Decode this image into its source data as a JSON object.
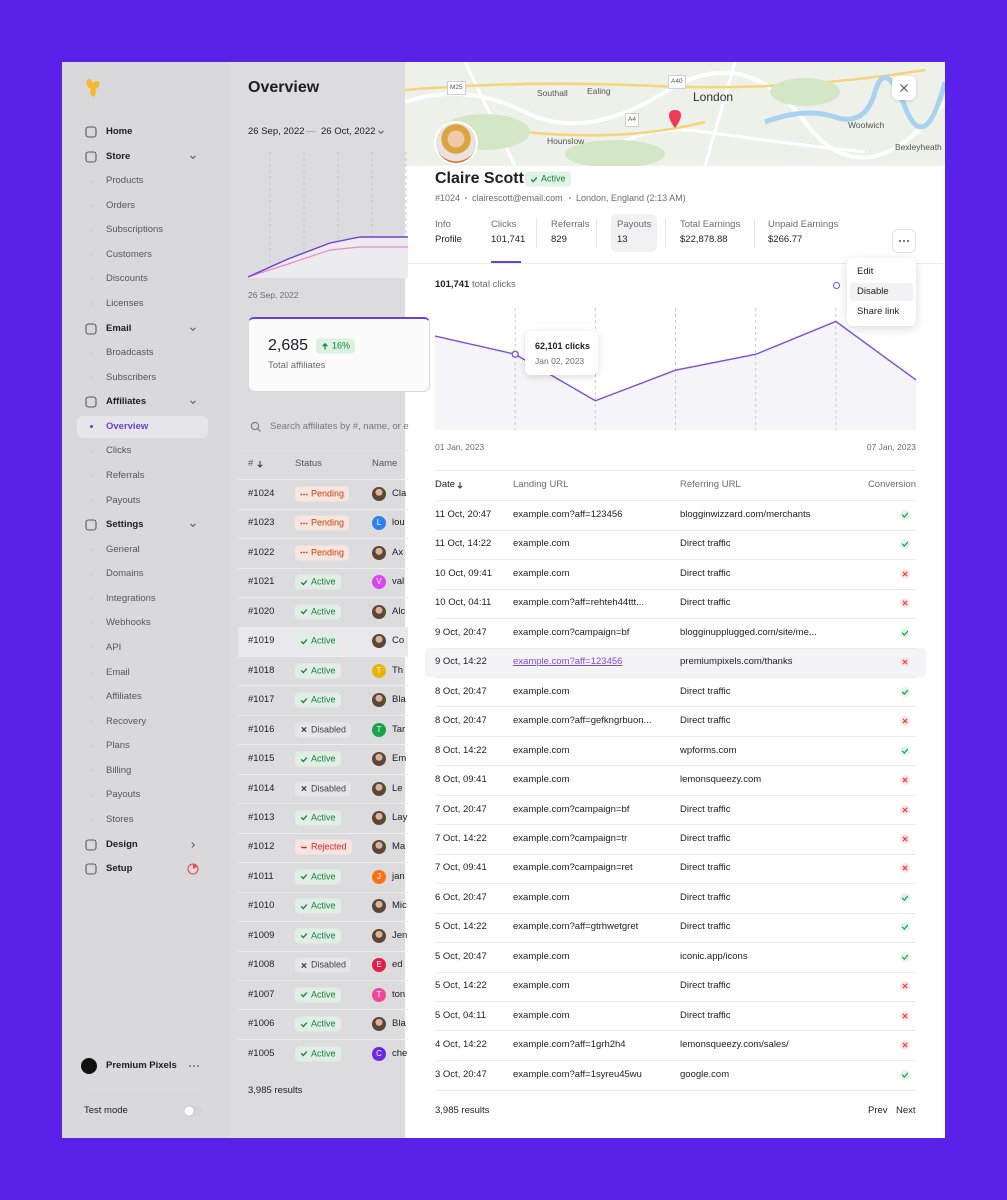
{
  "sidebar": {
    "nav": [
      {
        "label": "Home"
      },
      {
        "label": "Store",
        "children": [
          "Products",
          "Orders",
          "Subscriptions",
          "Customers",
          "Discounts",
          "Licenses"
        ]
      },
      {
        "label": "Email",
        "children": [
          "Broadcasts",
          "Subscribers"
        ]
      },
      {
        "label": "Affiliates",
        "children": [
          "Overview",
          "Clicks",
          "Referrals",
          "Payouts"
        ]
      },
      {
        "label": "Settings",
        "children": [
          "General",
          "Domains",
          "Integrations",
          "Webhooks",
          "API",
          "Email",
          "Affiliates",
          "Recovery",
          "Plans",
          "Billing",
          "Payouts",
          "Stores"
        ]
      },
      {
        "label": "Design"
      },
      {
        "label": "Setup"
      }
    ],
    "account": "Premium Pixels",
    "test_mode": "Test mode"
  },
  "overview": {
    "title": "Overview",
    "date_start": "26 Sep, 2022",
    "date_separator": "—",
    "date_end": "26 Oct, 2022",
    "chart_start": "26 Sep, 2022",
    "stat": {
      "value": "2,685",
      "change": "16%",
      "label": "Total affiliates"
    },
    "search_placeholder": "Search affiliates by #, name, or e",
    "columns": [
      "#",
      "Status",
      "Name"
    ],
    "rows": [
      {
        "id": "#1024",
        "status": "Pending",
        "status_color": "#c2410c",
        "icon": "dots",
        "name": "Cla"
      },
      {
        "id": "#1023",
        "status": "Pending",
        "status_color": "#c2410c",
        "icon": "dots",
        "name": "lou",
        "avatar": {
          "initial": "L",
          "color": "#2f80ed"
        }
      },
      {
        "id": "#1022",
        "status": "Pending",
        "status_color": "#c2410c",
        "icon": "dots",
        "name": "Ax"
      },
      {
        "id": "#1021",
        "status": "Active",
        "status_color": "#15803d",
        "icon": "check",
        "name": "val",
        "avatar": {
          "initial": "V",
          "color": "#d946ef"
        }
      },
      {
        "id": "#1020",
        "status": "Active",
        "status_color": "#15803d",
        "icon": "check",
        "name": "Alc"
      },
      {
        "id": "#1019",
        "status": "Active",
        "status_color": "#15803d",
        "icon": "check",
        "name": "Co"
      },
      {
        "id": "#1018",
        "status": "Active",
        "status_color": "#15803d",
        "icon": "check",
        "name": "Th",
        "avatar": {
          "initial": "T",
          "color": "#eab308"
        }
      },
      {
        "id": "#1017",
        "status": "Active",
        "status_color": "#15803d",
        "icon": "check",
        "name": "Bla"
      },
      {
        "id": "#1016",
        "status": "Disabled",
        "status_color": "#3f3f46",
        "icon": "cross",
        "name": "Tar",
        "avatar": {
          "initial": "T",
          "color": "#16a34a"
        }
      },
      {
        "id": "#1015",
        "status": "Active",
        "status_color": "#15803d",
        "icon": "check",
        "name": "Em"
      },
      {
        "id": "#1014",
        "status": "Disabled",
        "status_color": "#3f3f46",
        "icon": "cross",
        "name": "Le"
      },
      {
        "id": "#1013",
        "status": "Active",
        "status_color": "#15803d",
        "icon": "check",
        "name": "Lay"
      },
      {
        "id": "#1012",
        "status": "Rejected",
        "status_color": "#dc2626",
        "icon": "minus",
        "name": "Ma"
      },
      {
        "id": "#1011",
        "status": "Active",
        "status_color": "#15803d",
        "icon": "check",
        "name": "jan",
        "avatar": {
          "initial": "J",
          "color": "#f97316"
        }
      },
      {
        "id": "#1010",
        "status": "Active",
        "status_color": "#15803d",
        "icon": "check",
        "name": "Mic"
      },
      {
        "id": "#1009",
        "status": "Active",
        "status_color": "#15803d",
        "icon": "check",
        "name": "Jen"
      },
      {
        "id": "#1008",
        "status": "Disabled",
        "status_color": "#3f3f46",
        "icon": "cross",
        "name": "ed",
        "avatar": {
          "initial": "E",
          "color": "#e11d48"
        }
      },
      {
        "id": "#1007",
        "status": "Active",
        "status_color": "#15803d",
        "icon": "check",
        "name": "ton",
        "avatar": {
          "initial": "T",
          "color": "#ec4899"
        }
      },
      {
        "id": "#1006",
        "status": "Active",
        "status_color": "#15803d",
        "icon": "check",
        "name": "Bla"
      },
      {
        "id": "#1005",
        "status": "Active",
        "status_color": "#15803d",
        "icon": "check",
        "name": "che",
        "avatar": {
          "initial": "C",
          "color": "#6d28d9"
        }
      }
    ],
    "results": "3,985 results"
  },
  "map": {
    "labels": [
      "M25",
      "Southall",
      "Ealing",
      "A40",
      "London",
      "A4",
      "Hounslow",
      "Woolwich",
      "Bexleyheath"
    ]
  },
  "profile": {
    "name": "Claire Scott",
    "status": "Active",
    "id": "#1024",
    "email": "clairescott@email.com",
    "location": "London, England (2:13 AM)"
  },
  "tabs": [
    {
      "label": "Info",
      "value": "Profile"
    },
    {
      "label": "Clicks",
      "value": "101,741"
    },
    {
      "label": "Referrals",
      "value": "829"
    },
    {
      "label": "Payouts",
      "value": "13"
    },
    {
      "label": "Total Earnings",
      "value": "$22,878.88"
    },
    {
      "label": "Unpaid Earnings",
      "value": "$266.77"
    }
  ],
  "menu": [
    "Edit",
    "Disable",
    "Share link"
  ],
  "chart_data": {
    "type": "line",
    "total": "101,741",
    "total_label": "total clicks",
    "categories": [
      "01 Jan, 2023",
      null,
      null,
      null,
      null,
      null,
      "07 Jan, 2023"
    ],
    "values": [
      77000,
      62101,
      24000,
      49000,
      62000,
      89000,
      41000
    ],
    "color": "#7c4ddb",
    "ylim": [
      0,
      100000
    ],
    "grid": true,
    "tooltip": {
      "title": "62,101 clicks",
      "date": "Jan 02, 2023"
    }
  },
  "clicks_table": {
    "columns": [
      "Date",
      "Landing URL",
      "Referring URL",
      "Conversion"
    ],
    "rows": [
      {
        "date": "11 Oct, 20:47",
        "landing": "example.com?aff=123456",
        "referring": "blogginwizzard.com/merchants",
        "converted": true
      },
      {
        "date": "11 Oct, 14:22",
        "landing": "example.com",
        "referring": "Direct traffic",
        "converted": true
      },
      {
        "date": "10 Oct, 09:41",
        "landing": "example.com",
        "referring": "Direct traffic",
        "converted": false
      },
      {
        "date": "10 Oct, 04:11",
        "landing": "example.com?aff=rehteh44ttt...",
        "referring": "Direct traffic",
        "converted": false
      },
      {
        "date": "9 Oct, 20:47",
        "landing": "example.com?campaign=bf",
        "referring": "blogginupplugged.com/site/me...",
        "converted": true
      },
      {
        "date": "9 Oct, 14:22",
        "landing": "example.com?aff=123456",
        "referring": "premiumpixels.com/thanks",
        "converted": false
      },
      {
        "date": "8 Oct, 20:47",
        "landing": "example.com",
        "referring": "Direct traffic",
        "converted": true
      },
      {
        "date": "8 Oct, 20:47",
        "landing": "example.com?aff=gefkngrbuon...",
        "referring": "Direct traffic",
        "converted": false
      },
      {
        "date": "8 Oct, 14:22",
        "landing": "example.com",
        "referring": "wpforms.com",
        "converted": true
      },
      {
        "date": "8 Oct, 09:41",
        "landing": "example.com",
        "referring": "lemonsqueezy.com",
        "converted": false
      },
      {
        "date": "7 Oct, 20:47",
        "landing": "example.com?campaign=bf",
        "referring": "Direct traffic",
        "converted": false
      },
      {
        "date": "7 Oct, 14:22",
        "landing": "example.com?campaign=tr",
        "referring": "Direct traffic",
        "converted": false
      },
      {
        "date": "7 Oct, 09:41",
        "landing": "example.com?campaign=ret",
        "referring": "Direct traffic",
        "converted": false
      },
      {
        "date": "6 Oct, 20:47",
        "landing": "example.com",
        "referring": "Direct traffic",
        "converted": true
      },
      {
        "date": "5 Oct, 14:22",
        "landing": "example.com?aff=gtrhwetgret",
        "referring": "Direct traffic",
        "converted": true
      },
      {
        "date": "5 Oct, 20:47",
        "landing": "example.com",
        "referring": "iconic.app/icons",
        "converted": true
      },
      {
        "date": "5 Oct, 14:22",
        "landing": "example.com",
        "referring": "Direct traffic",
        "converted": false
      },
      {
        "date": "5 Oct, 04:11",
        "landing": "example.com",
        "referring": "Direct traffic",
        "converted": false
      },
      {
        "date": "4 Oct, 14:22",
        "landing": "example.com?aff=1grh2h4",
        "referring": "lemonsqueezy.com/sales/",
        "converted": false
      },
      {
        "date": "3 Oct, 20:47",
        "landing": "example.com?aff=1syreu45wu",
        "referring": "google.com",
        "converted": true
      }
    ],
    "results": "3,985 results",
    "prev": "Prev",
    "next": "Next"
  }
}
